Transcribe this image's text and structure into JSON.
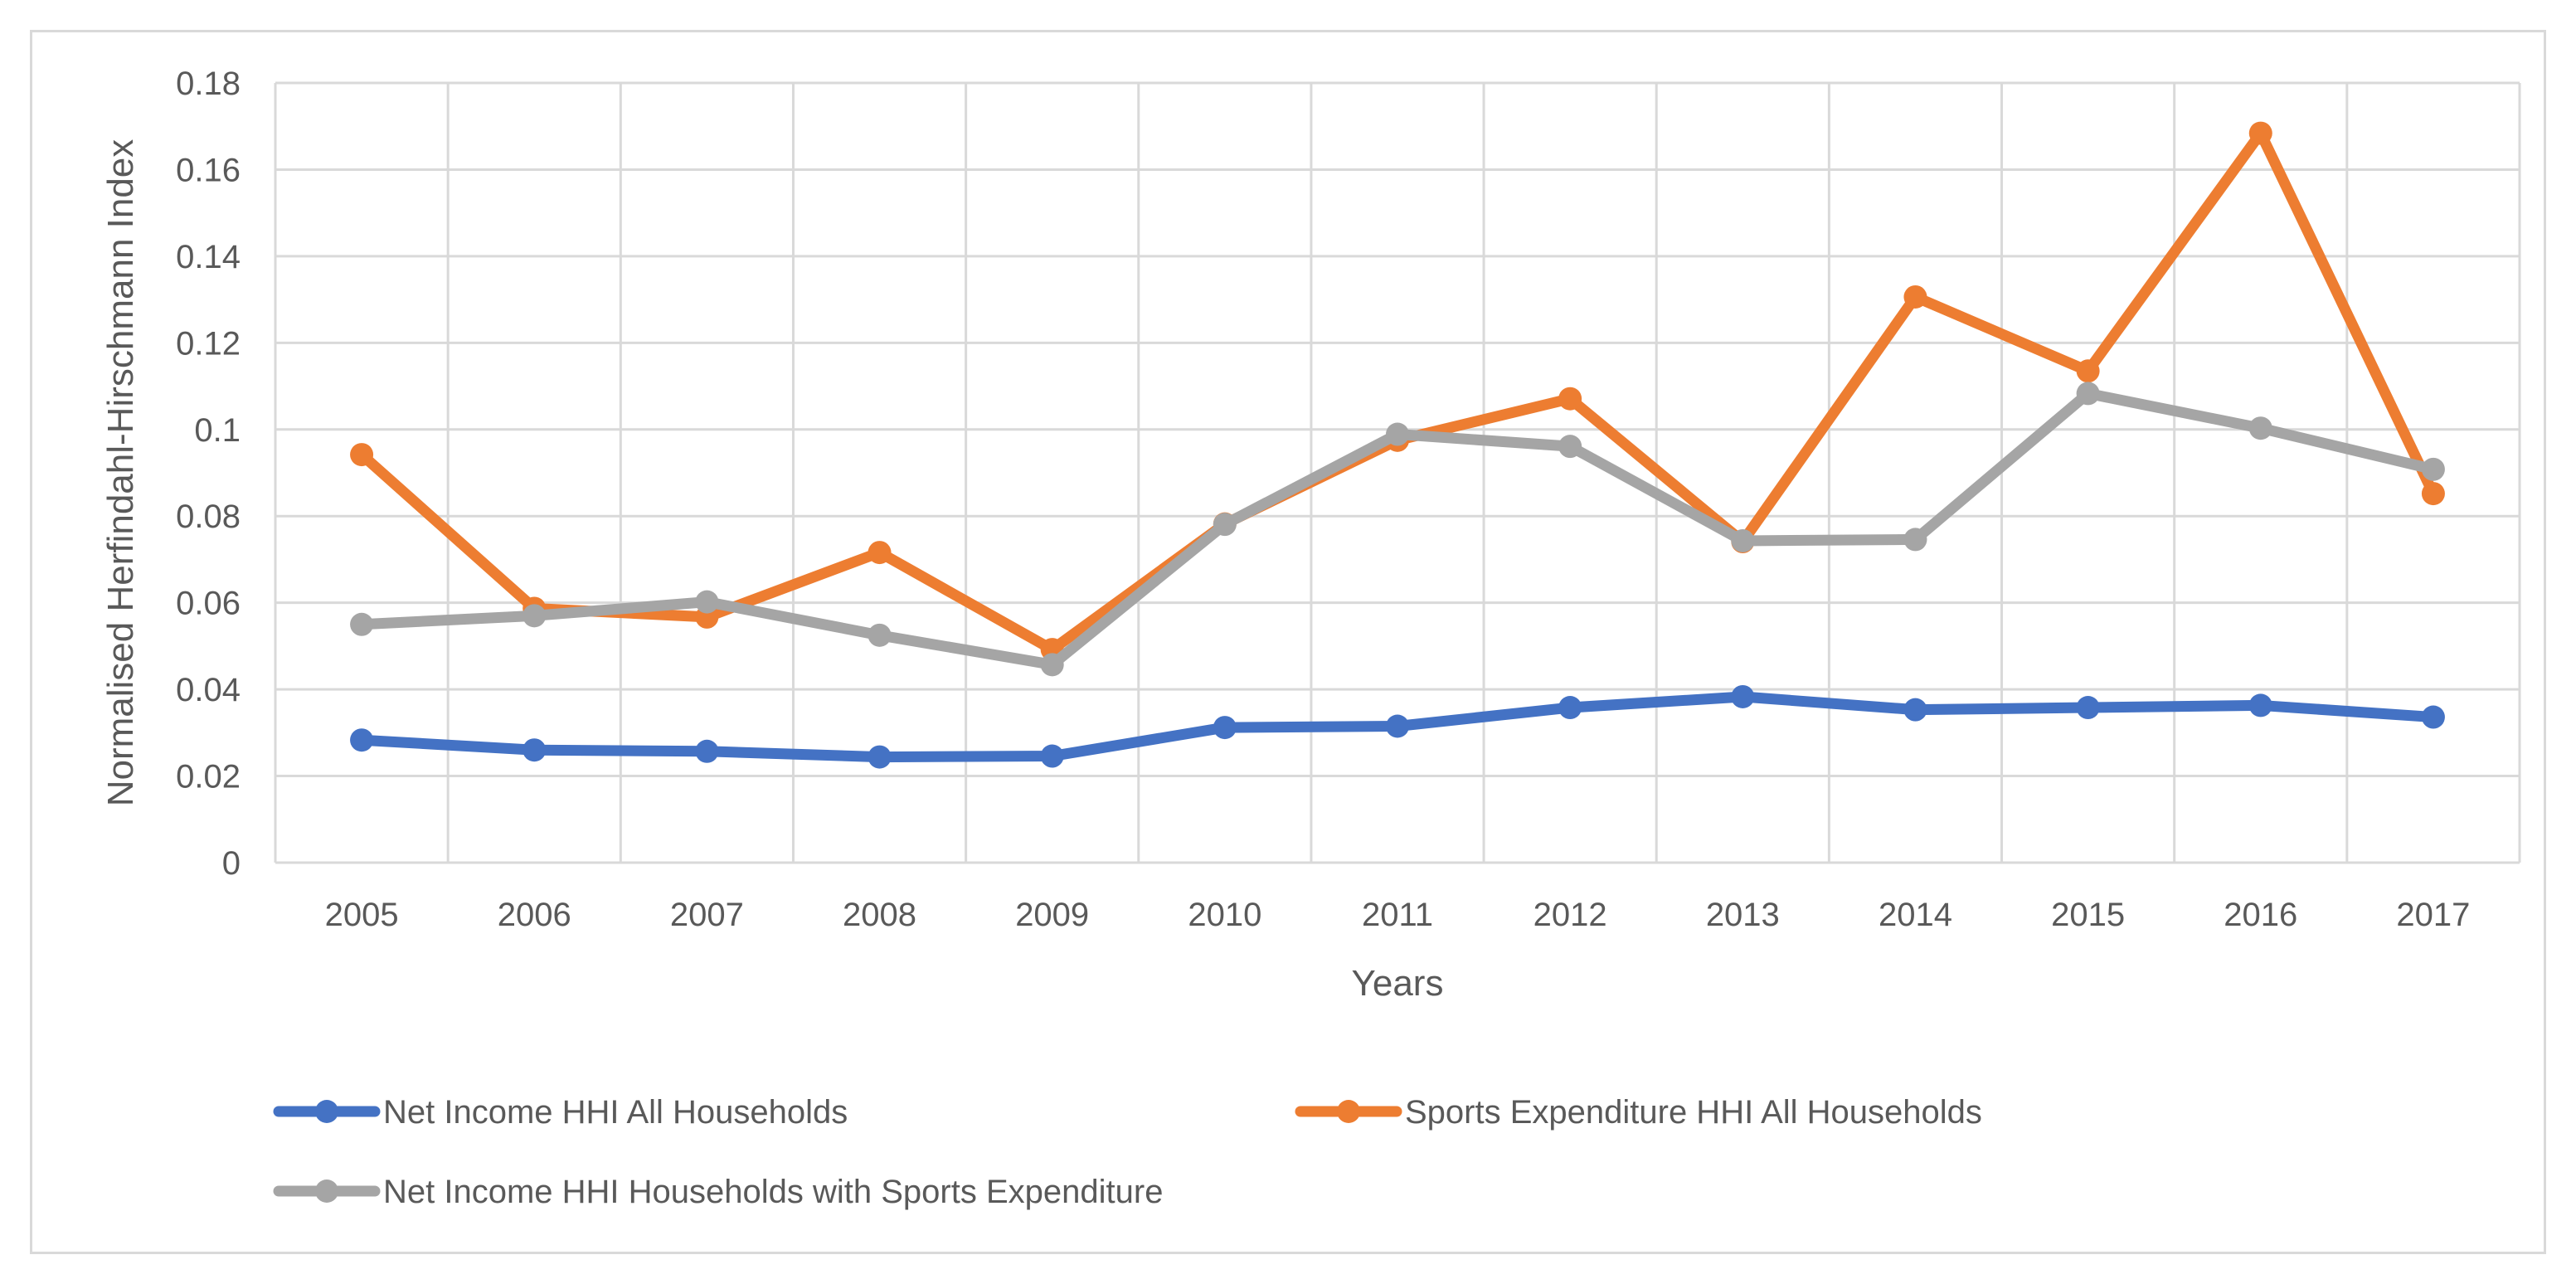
{
  "chart_data": {
    "type": "line",
    "title": "",
    "xlabel": "Years",
    "ylabel": "Normalised Herfindahl-Hirschmann Index",
    "categories": [
      "2005",
      "2006",
      "2007",
      "2008",
      "2009",
      "2010",
      "2011",
      "2012",
      "2013",
      "2014",
      "2015",
      "2016",
      "2017"
    ],
    "ylim": [
      0,
      0.18
    ],
    "yticks": [
      0,
      0.02,
      0.04,
      0.06,
      0.08,
      0.1,
      0.12,
      0.14,
      0.16,
      0.18
    ],
    "ytick_labels": [
      "0",
      "0.02",
      "0.04",
      "0.06",
      "0.08",
      "0.1",
      "0.12",
      "0.14",
      "0.16",
      "0.18"
    ],
    "grid": true,
    "legend_position": "bottom",
    "series": [
      {
        "name": "Net Income HHI All Households",
        "color": "#4472c4",
        "values": [
          0.0283,
          0.026,
          0.0257,
          0.0244,
          0.0246,
          0.0312,
          0.0315,
          0.0358,
          0.0383,
          0.0353,
          0.0358,
          0.0363,
          0.0336
        ]
      },
      {
        "name": "Sports Expenditure HHI All Households",
        "color": "#ed7d31",
        "values": [
          0.0942,
          0.0587,
          0.0567,
          0.0716,
          0.0492,
          0.0782,
          0.0975,
          0.1071,
          0.0741,
          0.1306,
          0.1135,
          0.1684,
          0.0852
        ]
      },
      {
        "name": "Net Income HHI Households with Sports Expenditure",
        "color": "#a5a5a5",
        "values": [
          0.055,
          0.057,
          0.0602,
          0.0525,
          0.0457,
          0.0781,
          0.0989,
          0.0961,
          0.0743,
          0.0746,
          0.1083,
          0.1003,
          0.0908
        ]
      }
    ]
  }
}
